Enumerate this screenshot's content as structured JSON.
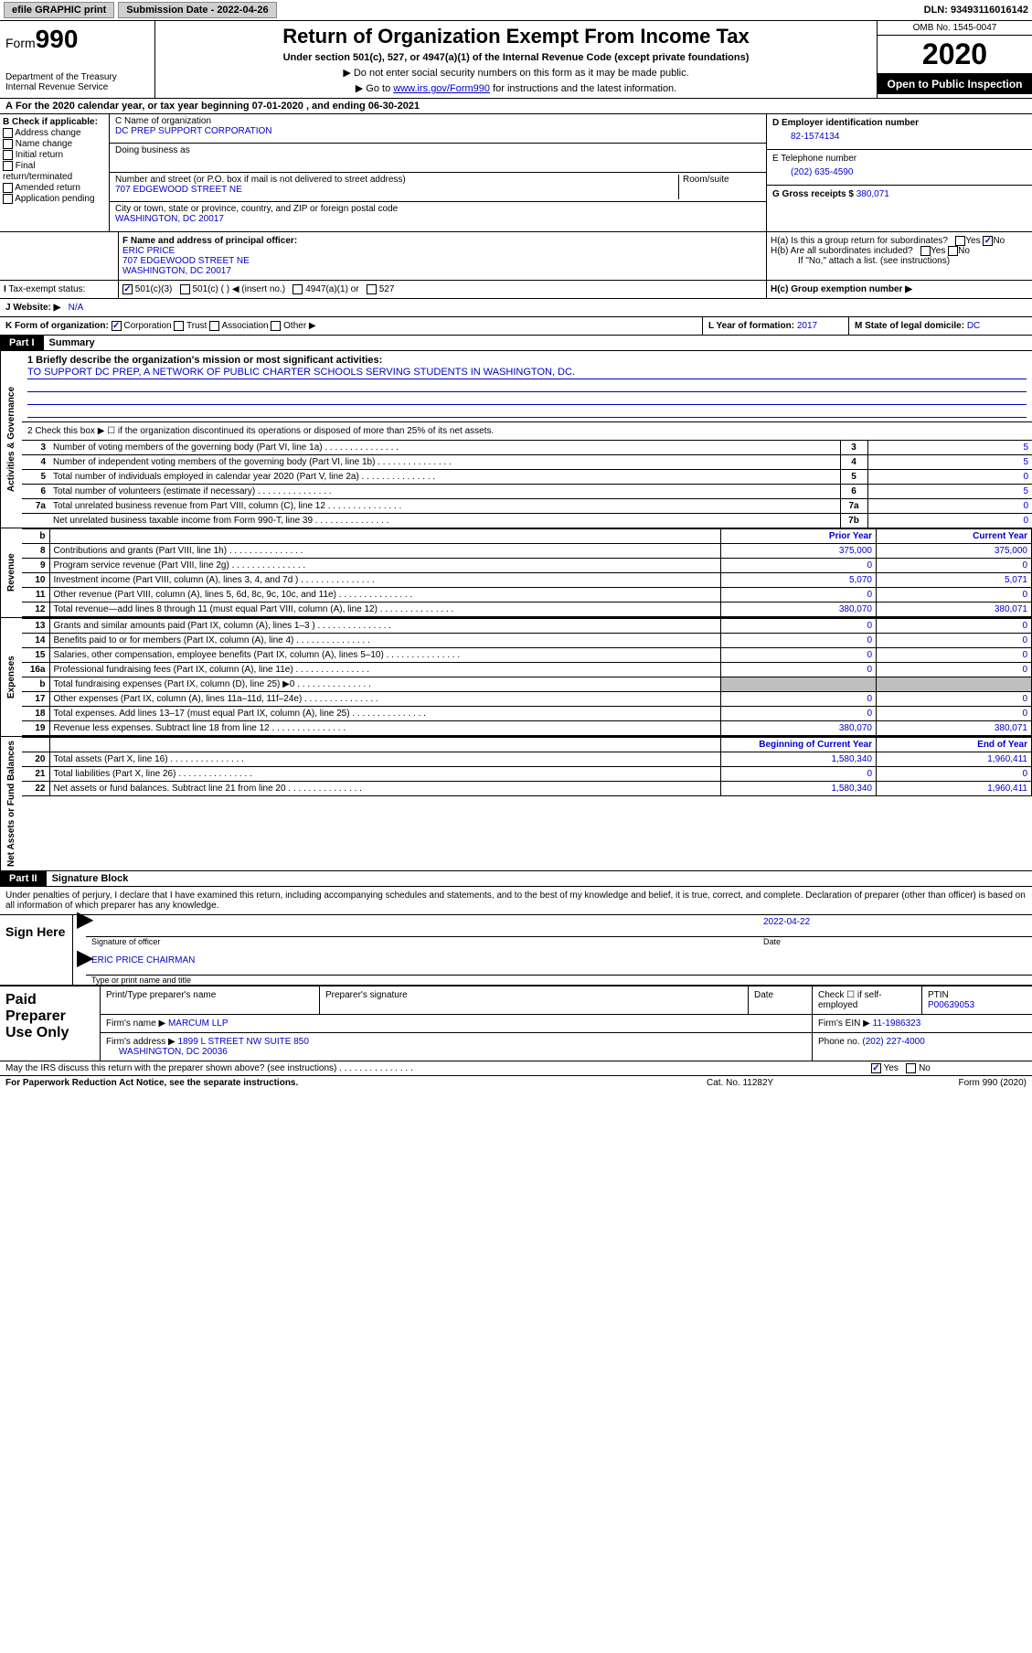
{
  "topbar": {
    "efile": "efile GRAPHIC print",
    "submission_label": "Submission Date - 2022-04-26",
    "dln": "DLN: 93493116016142"
  },
  "header": {
    "form_prefix": "Form",
    "form_number": "990",
    "dept1": "Department of the Treasury",
    "dept2": "Internal Revenue Service",
    "title": "Return of Organization Exempt From Income Tax",
    "subtitle": "Under section 501(c), 527, or 4947(a)(1) of the Internal Revenue Code (except private foundations)",
    "note1": "▶ Do not enter social security numbers on this form as it may be made public.",
    "note2_pre": "▶ Go to ",
    "note2_link": "www.irs.gov/Form990",
    "note2_post": " for instructions and the latest information.",
    "omb": "OMB No. 1545-0047",
    "year": "2020",
    "public": "Open to Public Inspection"
  },
  "lineA": "For the 2020 calendar year, or tax year beginning 07-01-2020   , and ending 06-30-2021",
  "boxB": {
    "header": "B Check if applicable:",
    "opts": [
      "Address change",
      "Name change",
      "Initial return",
      "Final return/terminated",
      "Amended return",
      "Application pending"
    ]
  },
  "boxC": {
    "name_lbl": "C Name of organization",
    "name": "DC PREP SUPPORT CORPORATION",
    "dba_lbl": "Doing business as",
    "street_lbl": "Number and street (or P.O. box if mail is not delivered to street address)",
    "room_lbl": "Room/suite",
    "street": "707 EDGEWOOD STREET NE",
    "city_lbl": "City or town, state or province, country, and ZIP or foreign postal code",
    "city": "WASHINGTON, DC  20017"
  },
  "boxD": {
    "lbl": "D Employer identification number",
    "val": "82-1574134"
  },
  "boxE": {
    "lbl": "E Telephone number",
    "val": "(202) 635-4590"
  },
  "boxG": {
    "lbl": "G Gross receipts $",
    "val": "380,071"
  },
  "boxF": {
    "lbl": "F Name and address of principal officer:",
    "name": "ERIC PRICE",
    "addr1": "707 EDGEWOOD STREET NE",
    "addr2": "WASHINGTON, DC  20017"
  },
  "boxH": {
    "a": "H(a)  Is this a group return for subordinates?",
    "b": "H(b)  Are all subordinates included?",
    "b_note": "If \"No,\" attach a list. (see instructions)",
    "c": "H(c)  Group exemption number ▶",
    "yes": "Yes",
    "no": "No"
  },
  "boxI": {
    "lbl": "Tax-exempt status:",
    "opts": [
      "501(c)(3)",
      "501(c) (   ) ◀ (insert no.)",
      "4947(a)(1) or",
      "527"
    ]
  },
  "boxJ": {
    "lbl": "Website: ▶",
    "val": "N/A"
  },
  "boxK": {
    "lbl": "K Form of organization:",
    "opts": [
      "Corporation",
      "Trust",
      "Association",
      "Other ▶"
    ]
  },
  "boxL": {
    "lbl": "L Year of formation:",
    "val": "2017"
  },
  "boxM": {
    "lbl": "M State of legal domicile:",
    "val": "DC"
  },
  "part1": {
    "header": "Part I",
    "title": "Summary",
    "side_gov": "Activities & Governance",
    "side_rev": "Revenue",
    "side_exp": "Expenses",
    "side_net": "Net Assets or Fund Balances",
    "l1": "1  Briefly describe the organization's mission or most significant activities:",
    "mission": "TO SUPPORT DC PREP, A NETWORK OF PUBLIC CHARTER SCHOOLS SERVING STUDENTS IN WASHINGTON, DC.",
    "l2": "2   Check this box ▶ ☐  if the organization discontinued its operations or disposed of more than 25% of its net assets.",
    "rows_gov": [
      {
        "n": "3",
        "d": "Number of voting members of the governing body (Part VI, line 1a)",
        "k": "3",
        "v": "5"
      },
      {
        "n": "4",
        "d": "Number of independent voting members of the governing body (Part VI, line 1b)",
        "k": "4",
        "v": "5"
      },
      {
        "n": "5",
        "d": "Total number of individuals employed in calendar year 2020 (Part V, line 2a)",
        "k": "5",
        "v": "0"
      },
      {
        "n": "6",
        "d": "Total number of volunteers (estimate if necessary)",
        "k": "6",
        "v": "5"
      },
      {
        "n": "7a",
        "d": "Total unrelated business revenue from Part VIII, column (C), line 12",
        "k": "7a",
        "v": "0"
      },
      {
        "n": "",
        "d": "Net unrelated business taxable income from Form 990-T, line 39",
        "k": "7b",
        "v": "0"
      }
    ],
    "hdr_b": "b",
    "hdr_prior": "Prior Year",
    "hdr_curr": "Current Year",
    "rows_rev": [
      {
        "n": "8",
        "d": "Contributions and grants (Part VIII, line 1h)",
        "py": "375,000",
        "cy": "375,000"
      },
      {
        "n": "9",
        "d": "Program service revenue (Part VIII, line 2g)",
        "py": "0",
        "cy": "0"
      },
      {
        "n": "10",
        "d": "Investment income (Part VIII, column (A), lines 3, 4, and 7d )",
        "py": "5,070",
        "cy": "5,071"
      },
      {
        "n": "11",
        "d": "Other revenue (Part VIII, column (A), lines 5, 6d, 8c, 9c, 10c, and 11e)",
        "py": "0",
        "cy": "0"
      },
      {
        "n": "12",
        "d": "Total revenue—add lines 8 through 11 (must equal Part VIII, column (A), line 12)",
        "py": "380,070",
        "cy": "380,071"
      }
    ],
    "rows_exp": [
      {
        "n": "13",
        "d": "Grants and similar amounts paid (Part IX, column (A), lines 1–3 )",
        "py": "0",
        "cy": "0"
      },
      {
        "n": "14",
        "d": "Benefits paid to or for members (Part IX, column (A), line 4)",
        "py": "0",
        "cy": "0"
      },
      {
        "n": "15",
        "d": "Salaries, other compensation, employee benefits (Part IX, column (A), lines 5–10)",
        "py": "0",
        "cy": "0"
      },
      {
        "n": "16a",
        "d": "Professional fundraising fees (Part IX, column (A), line 11e)",
        "py": "0",
        "cy": "0"
      },
      {
        "n": "b",
        "d": "Total fundraising expenses (Part IX, column (D), line 25) ▶0",
        "py": "__SHADE__",
        "cy": "__SHADE__"
      },
      {
        "n": "17",
        "d": "Other expenses (Part IX, column (A), lines 11a–11d, 11f–24e)",
        "py": "0",
        "cy": "0"
      },
      {
        "n": "18",
        "d": "Total expenses. Add lines 13–17 (must equal Part IX, column (A), line 25)",
        "py": "0",
        "cy": "0"
      },
      {
        "n": "19",
        "d": "Revenue less expenses. Subtract line 18 from line 12",
        "py": "380,070",
        "cy": "380,071"
      }
    ],
    "hdr_boy": "Beginning of Current Year",
    "hdr_eoy": "End of Year",
    "rows_net": [
      {
        "n": "20",
        "d": "Total assets (Part X, line 16)",
        "py": "1,580,340",
        "cy": "1,960,411"
      },
      {
        "n": "21",
        "d": "Total liabilities (Part X, line 26)",
        "py": "0",
        "cy": "0"
      },
      {
        "n": "22",
        "d": "Net assets or fund balances. Subtract line 21 from line 20",
        "py": "1,580,340",
        "cy": "1,960,411"
      }
    ]
  },
  "part2": {
    "header": "Part II",
    "title": "Signature Block",
    "disclaimer": "Under penalties of perjury, I declare that I have examined this return, including accompanying schedules and statements, and to the best of my knowledge and belief, it is true, correct, and complete. Declaration of preparer (other than officer) is based on all information of which preparer has any knowledge."
  },
  "sign": {
    "left": "Sign Here",
    "sig_officer": "Signature of officer",
    "date_lbl": "Date",
    "date": "2022-04-22",
    "name": "ERIC PRICE  CHAIRMAN",
    "name_lbl": "Type or print name and title"
  },
  "paid": {
    "left": "Paid Preparer Use Only",
    "h1": "Print/Type preparer's name",
    "h2": "Preparer's signature",
    "h3": "Date",
    "h4": "Check ☐ if self-employed",
    "h5_lbl": "PTIN",
    "h5": "P00639053",
    "firm_lbl": "Firm's name   ▶",
    "firm": "MARCUM LLP",
    "ein_lbl": "Firm's EIN ▶",
    "ein": "11-1986323",
    "addr_lbl": "Firm's address ▶",
    "addr1": "1899 L STREET NW SUITE 850",
    "addr2": "WASHINGTON, DC  20036",
    "phone_lbl": "Phone no.",
    "phone": "(202) 227-4000"
  },
  "discuss": {
    "q": "May the IRS discuss this return with the preparer shown above? (see instructions)",
    "yes": "Yes",
    "no": "No"
  },
  "footer": {
    "l": "For Paperwork Reduction Act Notice, see the separate instructions.",
    "c": "Cat. No. 11282Y",
    "r": "Form 990 (2020)"
  }
}
